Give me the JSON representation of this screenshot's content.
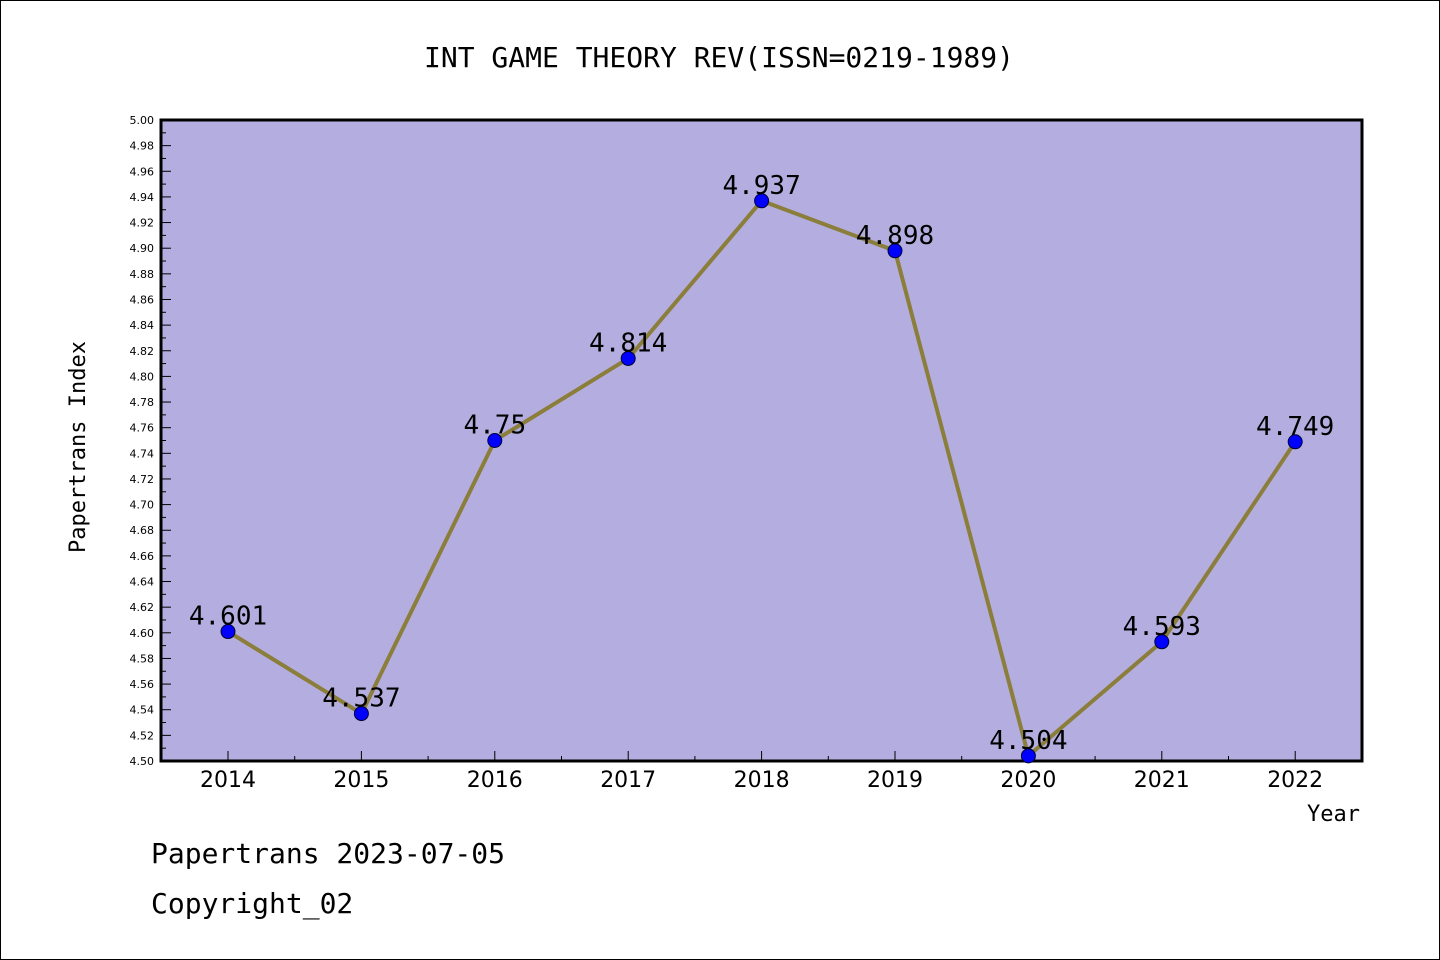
{
  "chart_data": {
    "type": "line",
    "title": "INT GAME THEORY REV(ISSN=0219-1989)",
    "xlabel": "Year",
    "ylabel": "Papertrans Index",
    "categories": [
      "2014",
      "2015",
      "2016",
      "2017",
      "2018",
      "2019",
      "2020",
      "2021",
      "2022"
    ],
    "series": [
      {
        "values": [
          4.601,
          4.537,
          4.75,
          4.814,
          4.937,
          4.898,
          4.504,
          4.593,
          4.749
        ],
        "labels": [
          "4.601",
          "4.537",
          "4.75",
          "4.814",
          "4.937",
          "4.898",
          "4.504",
          "4.593",
          "4.749"
        ]
      }
    ],
    "ylim": [
      4.5,
      5.0
    ],
    "ytick_step": 0.02,
    "grid": false,
    "legend": "none",
    "colors": {
      "plot_background": "#b4aee0",
      "line": "#8b7d3a",
      "marker": "#0000ff"
    }
  },
  "footer": {
    "line1": "Papertrans 2023-07-05",
    "line2": "Copyright_02"
  }
}
